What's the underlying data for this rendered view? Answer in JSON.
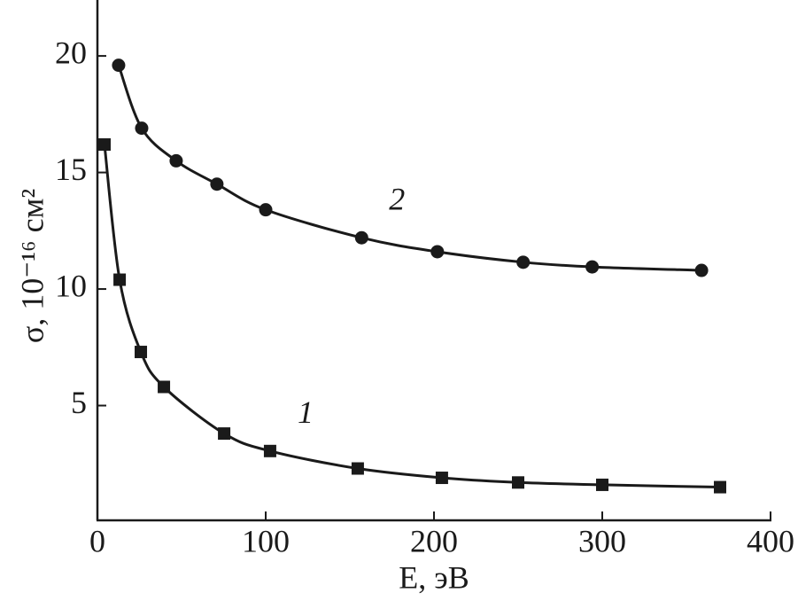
{
  "chart_data": {
    "type": "line",
    "x_label": "E, эВ",
    "y_label": "σ, 10⁻¹⁶ см²",
    "xlim": [
      0,
      400
    ],
    "xticks": [
      0,
      100,
      200,
      300,
      400
    ],
    "ylim": [
      0,
      22.4
    ],
    "yticks": [
      5,
      10,
      15,
      20
    ],
    "grid": false,
    "series": [
      {
        "name": "1",
        "color": "#1a1a1a",
        "marker": "square",
        "x": [
          4.2,
          13.2,
          25.8,
          39.5,
          75.3,
          102.6,
          154.7,
          204.7,
          250,
          300,
          370
        ],
        "values": [
          16.2,
          10.4,
          7.3,
          5.8,
          3.8,
          3.05,
          2.3,
          1.9,
          1.7,
          1.6,
          1.5
        ]
      },
      {
        "name": "2",
        "color": "#1a1a1a",
        "marker": "circle",
        "x": [
          12.6,
          26.3,
          46.8,
          71,
          100,
          157,
          202,
          253,
          294,
          359
        ],
        "values": [
          19.6,
          16.9,
          15.5,
          14.5,
          13.4,
          12.2,
          11.6,
          11.15,
          10.95,
          10.8
        ]
      }
    ]
  }
}
